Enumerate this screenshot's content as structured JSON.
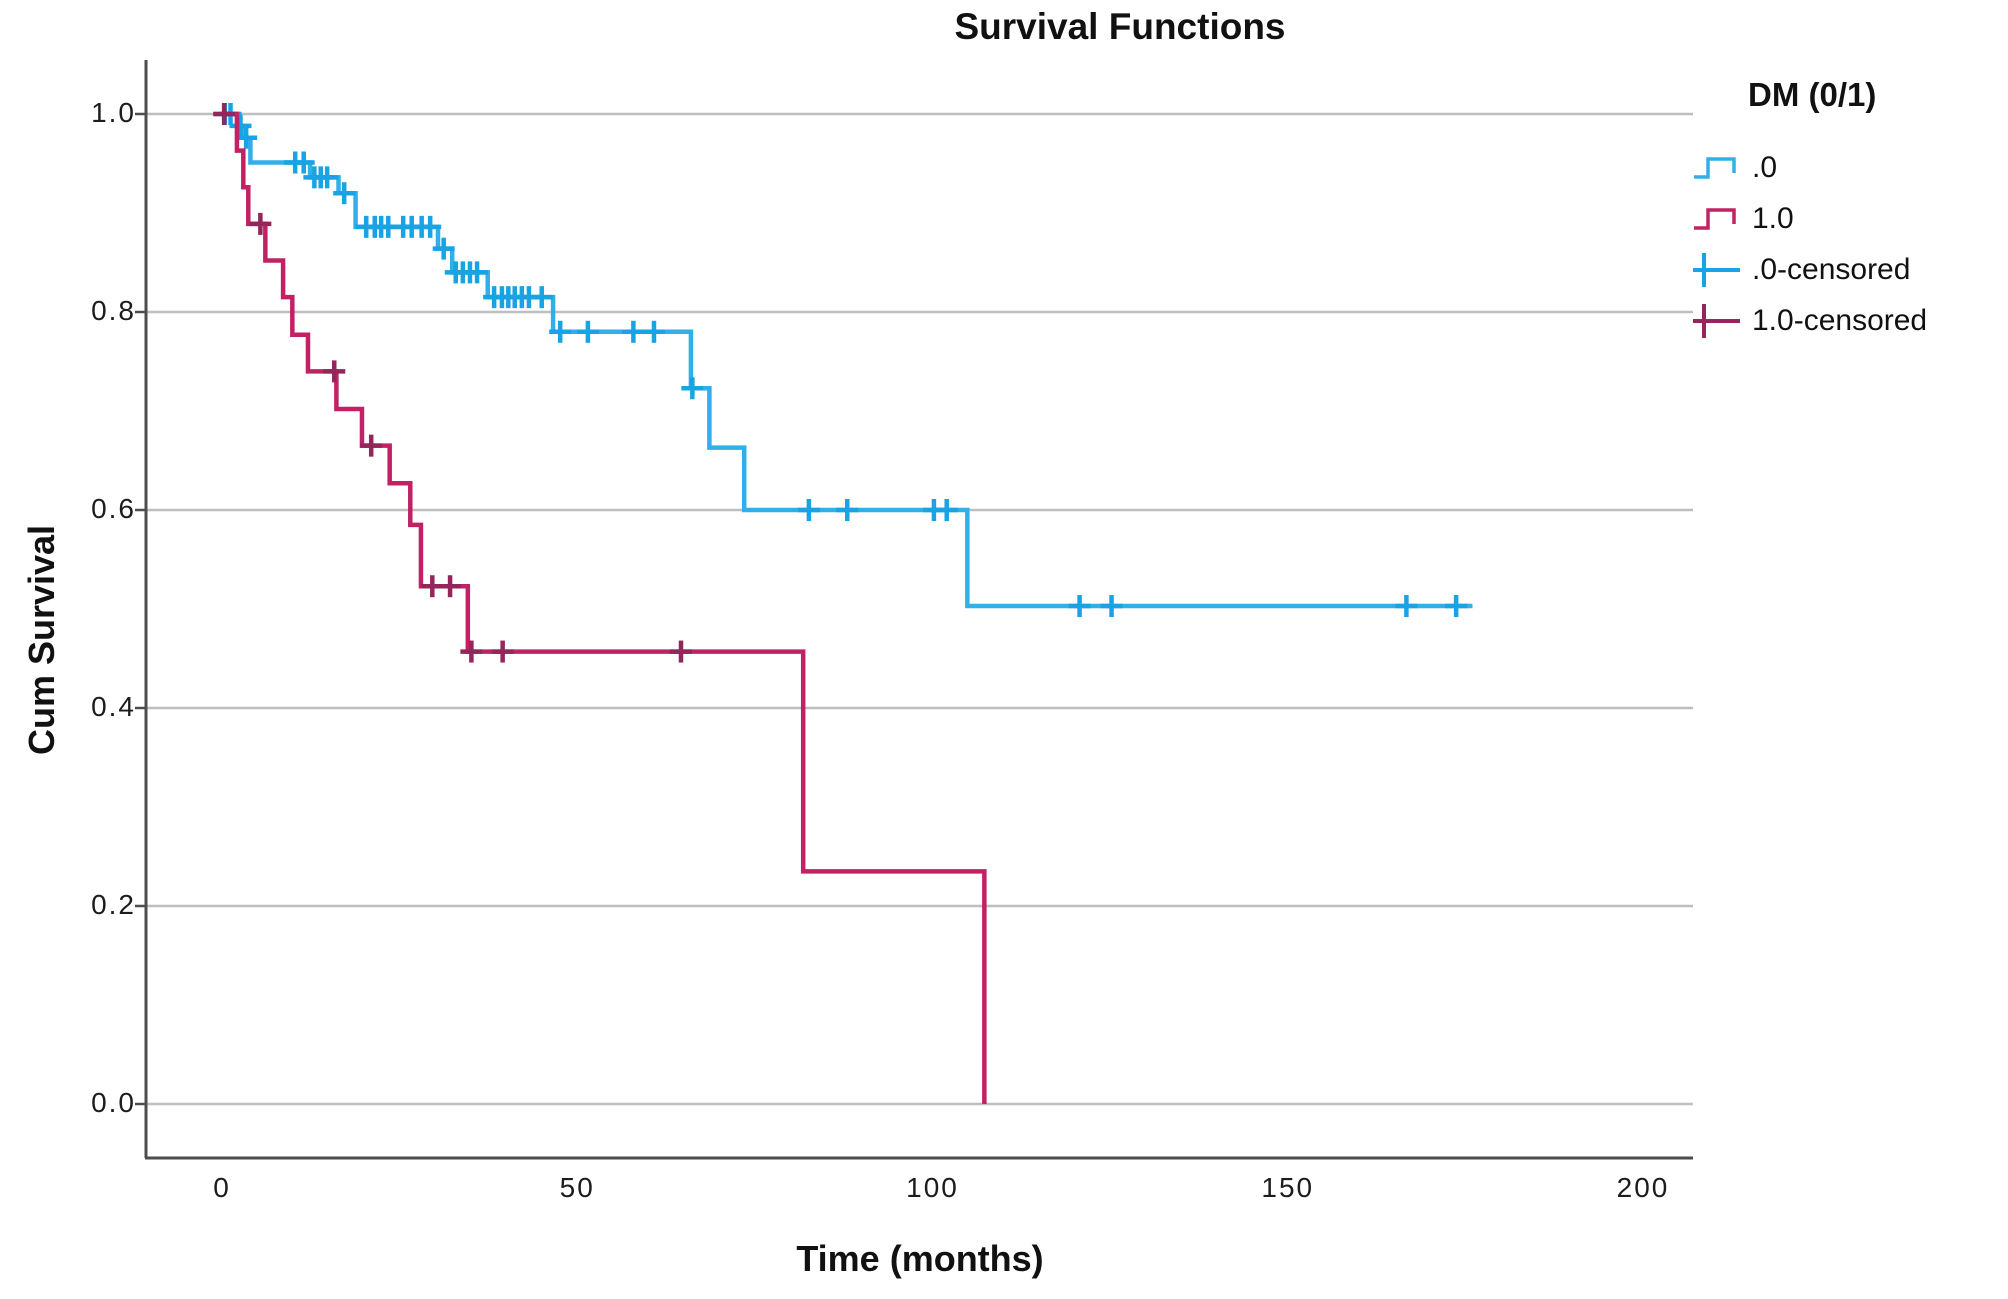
{
  "title": "Survival Functions",
  "y_axis_title": "Cum Survival",
  "x_axis_title": "Time (months)",
  "legend": {
    "title": "DM (0/1)",
    "items": [
      {
        "label": ".0",
        "type": "step",
        "series": 0
      },
      {
        "label": "1.0",
        "type": "step",
        "series": 1
      },
      {
        "label": ".0-censored",
        "type": "censor",
        "series": 0
      },
      {
        "label": "1.0-censored",
        "type": "censor",
        "series": 1
      }
    ]
  },
  "colors": {
    "grid": "#BEBEBE",
    "frame": "#4D4D4D",
    "background": "#ffffff"
  },
  "chart_data": {
    "type": "line",
    "subtype": "kaplan-meier-step",
    "title": "Survival Functions",
    "xlabel": "Time (months)",
    "ylabel": "Cum Survival",
    "xlim": [
      -10,
      207
    ],
    "ylim": [
      0.0,
      1.05
    ],
    "grid": "horizontal-only",
    "legend_position": "right",
    "x_ticks": [
      {
        "v": 0,
        "label": "0"
      },
      {
        "v": 50,
        "label": "50"
      },
      {
        "v": 100,
        "label": "100"
      },
      {
        "v": 150,
        "label": "150"
      },
      {
        "v": 200,
        "label": "200"
      }
    ],
    "y_ticks": [
      {
        "v": 0.0,
        "label": "0.0"
      },
      {
        "v": 0.2,
        "label": "0.2"
      },
      {
        "v": 0.4,
        "label": "0.4"
      },
      {
        "v": 0.6,
        "label": "0.6"
      },
      {
        "v": 0.8,
        "label": "0.8"
      },
      {
        "v": 1.0,
        "label": "1.0"
      }
    ],
    "series": [
      {
        "name": ".0",
        "group": "DM = 0",
        "color": "#31AFEA",
        "censor_color": "#17A3E4",
        "end_t": 176,
        "steps": [
          [
            0,
            1.0
          ],
          [
            2.2,
            0.988
          ],
          [
            3.2,
            0.976
          ],
          [
            4.0,
            0.951
          ],
          [
            12.4,
            0.936
          ],
          [
            16.4,
            0.92
          ],
          [
            18.8,
            0.886
          ],
          [
            30.4,
            0.864
          ],
          [
            32.4,
            0.84
          ],
          [
            37.4,
            0.815
          ],
          [
            46.6,
            0.78
          ],
          [
            66.0,
            0.723
          ],
          [
            68.6,
            0.663
          ],
          [
            73.5,
            0.6
          ],
          [
            104.9,
            0.503
          ]
        ],
        "censored": [
          [
            0.4,
            1.0
          ],
          [
            1.2,
            1.0
          ],
          [
            2.6,
            0.988
          ],
          [
            3.4,
            0.976
          ],
          [
            10.3,
            0.951
          ],
          [
            11.5,
            0.951
          ],
          [
            13.0,
            0.936
          ],
          [
            13.9,
            0.936
          ],
          [
            14.8,
            0.936
          ],
          [
            17.2,
            0.92
          ],
          [
            20.3,
            0.886
          ],
          [
            21.5,
            0.886
          ],
          [
            22.4,
            0.886
          ],
          [
            23.4,
            0.886
          ],
          [
            25.5,
            0.886
          ],
          [
            26.7,
            0.886
          ],
          [
            28.1,
            0.886
          ],
          [
            29.3,
            0.886
          ],
          [
            31.2,
            0.864
          ],
          [
            32.9,
            0.84
          ],
          [
            33.9,
            0.84
          ],
          [
            34.9,
            0.84
          ],
          [
            35.9,
            0.84
          ],
          [
            38.3,
            0.815
          ],
          [
            39.4,
            0.815
          ],
          [
            40.3,
            0.815
          ],
          [
            41.2,
            0.815
          ],
          [
            42.2,
            0.815
          ],
          [
            43.2,
            0.815
          ],
          [
            45.0,
            0.815
          ],
          [
            47.6,
            0.78
          ],
          [
            51.5,
            0.78
          ],
          [
            57.9,
            0.78
          ],
          [
            60.8,
            0.78
          ],
          [
            66.2,
            0.723
          ],
          [
            82.6,
            0.6
          ],
          [
            88.0,
            0.6
          ],
          [
            100.2,
            0.6
          ],
          [
            102.0,
            0.6
          ],
          [
            120.7,
            0.503
          ],
          [
            125.2,
            0.503
          ],
          [
            166.7,
            0.503
          ],
          [
            173.7,
            0.503
          ]
        ]
      },
      {
        "name": "1.0",
        "group": "DM = 1",
        "color": "#C22264",
        "censor_color": "#93265A",
        "end_t": 107.3,
        "steps": [
          [
            0,
            1.0
          ],
          [
            2.1,
            0.963
          ],
          [
            3.0,
            0.926
          ],
          [
            3.7,
            0.889
          ],
          [
            6.1,
            0.852
          ],
          [
            8.6,
            0.815
          ],
          [
            9.9,
            0.777
          ],
          [
            12.1,
            0.74
          ],
          [
            16.1,
            0.702
          ],
          [
            19.7,
            0.665
          ],
          [
            23.6,
            0.627
          ],
          [
            26.5,
            0.585
          ],
          [
            28.0,
            0.523
          ],
          [
            34.6,
            0.457
          ],
          [
            81.8,
            0.235
          ],
          [
            107.3,
            0.0
          ]
        ],
        "censored": [
          [
            0.3,
            1.0
          ],
          [
            5.4,
            0.889
          ],
          [
            15.8,
            0.74
          ],
          [
            21.0,
            0.665
          ],
          [
            29.6,
            0.523
          ],
          [
            32.1,
            0.523
          ],
          [
            35.1,
            0.457
          ],
          [
            39.5,
            0.457
          ],
          [
            64.6,
            0.457
          ]
        ]
      }
    ]
  }
}
